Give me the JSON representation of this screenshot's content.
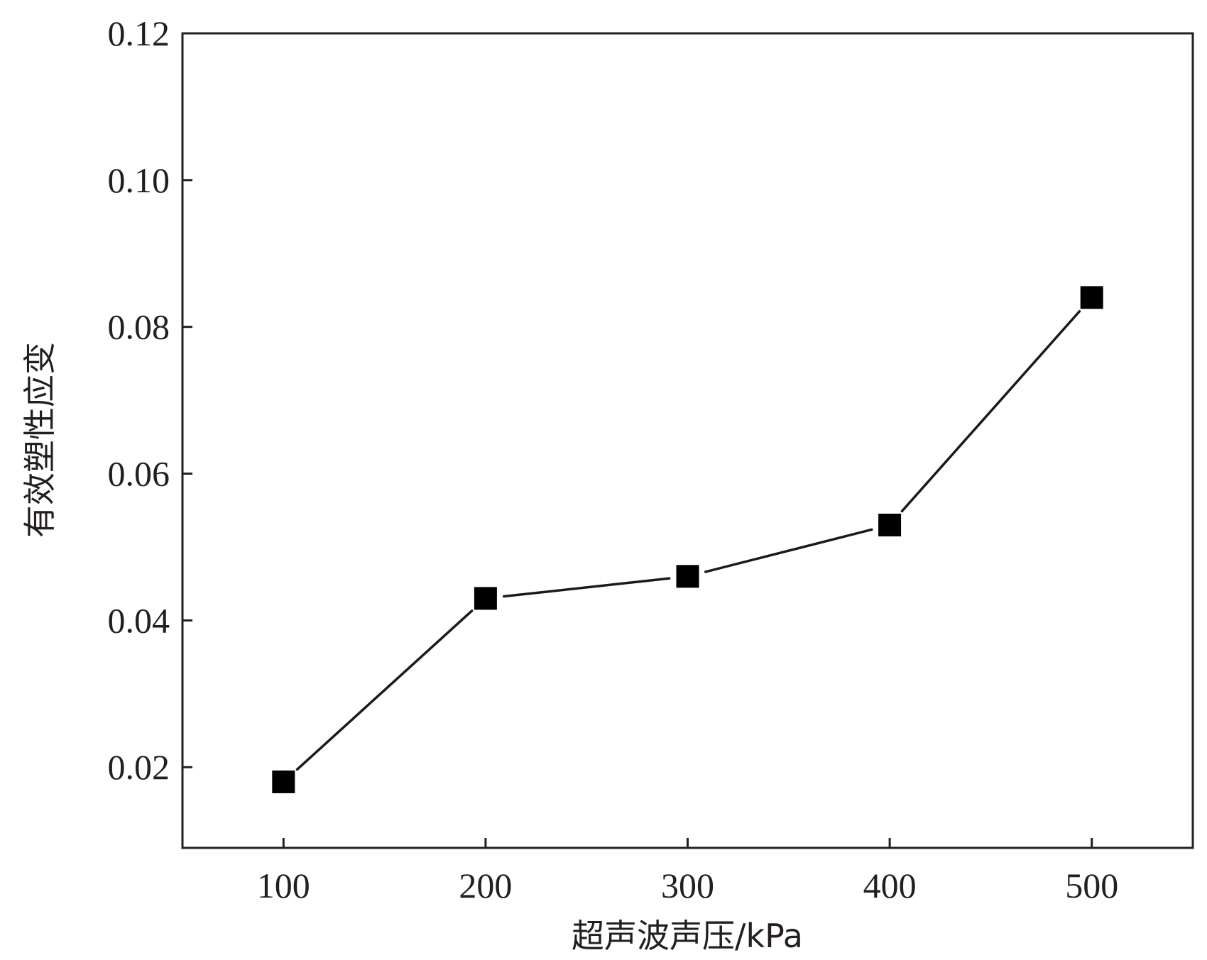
{
  "chart_data": {
    "type": "line",
    "title": "",
    "xlabel": "超声波声压/kPa",
    "ylabel": "有效塑性应变",
    "x": [
      100,
      200,
      300,
      400,
      500
    ],
    "series": [
      {
        "values": [
          0.018,
          0.043,
          0.046,
          0.053,
          0.084
        ],
        "marker": "square",
        "color": "#000000"
      }
    ],
    "xlim": [
      50,
      550
    ],
    "ylim": [
      0.009,
      0.12
    ],
    "xticks": [
      100,
      200,
      300,
      400,
      500
    ],
    "xtick_labels": [
      "100",
      "200",
      "300",
      "400",
      "500"
    ],
    "yticks": [
      0.02,
      0.04,
      0.06,
      0.08,
      0.1,
      0.12
    ],
    "ytick_labels": [
      "0.02",
      "0.04",
      "0.06",
      "0.08",
      "0.10",
      "0.12"
    ],
    "grid": false,
    "legend": "none"
  }
}
